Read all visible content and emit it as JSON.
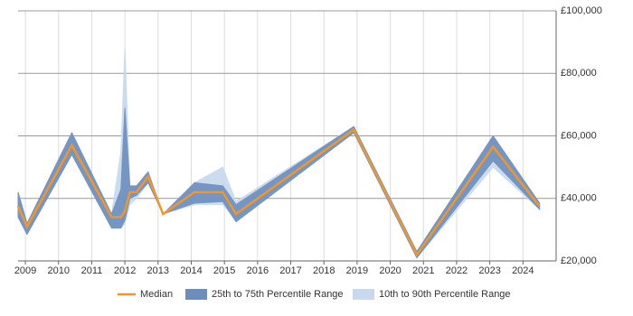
{
  "chart_data": {
    "type": "line",
    "x": [
      2008.78,
      2009.05,
      2010.4,
      2011.6,
      2011.88,
      2012.0,
      2012.15,
      2012.35,
      2012.7,
      2013.15,
      2014.1,
      2014.95,
      2015.35,
      2018.9,
      2020.8,
      2023.1,
      2024.5
    ],
    "series": [
      {
        "name": "Median",
        "color": "#f0962a",
        "values": [
          37500,
          31000,
          57000,
          34000,
          34000,
          36000,
          42000,
          42000,
          47000,
          35000,
          42000,
          42000,
          35000,
          62000,
          22000,
          56500,
          37500
        ]
      }
    ],
    "bands": [
      {
        "name": "25th to 75th Percentile Range",
        "color": "#6c8ebf",
        "lower": [
          34000,
          28500,
          54000,
          30500,
          30500,
          33000,
          40000,
          41000,
          45000,
          35000,
          38500,
          39000,
          32500,
          61000,
          21000,
          52000,
          36500
        ],
        "upper": [
          42000,
          32000,
          61000,
          35000,
          43000,
          69000,
          44000,
          44000,
          48500,
          35000,
          45000,
          44000,
          38000,
          63000,
          23000,
          60000,
          38500
        ]
      },
      {
        "name": "10th to 90th Percentile Range",
        "color": "#c6d9ee",
        "lower": [
          34000,
          28500,
          54000,
          30500,
          30500,
          32000,
          38000,
          40000,
          45000,
          35000,
          38000,
          38000,
          33000,
          61000,
          21000,
          50000,
          36500
        ],
        "upper": [
          42000,
          32000,
          61000,
          35000,
          55000,
          88000,
          44000,
          44000,
          48500,
          35000,
          45000,
          50000,
          39000,
          63000,
          23000,
          60000,
          38500
        ]
      }
    ],
    "xlim": [
      2008.78,
      2025.0
    ],
    "xticks": [
      2009,
      2010,
      2011,
      2012,
      2013,
      2014,
      2015,
      2016,
      2017,
      2018,
      2019,
      2020,
      2021,
      2022,
      2023,
      2024
    ],
    "ylim": [
      20000,
      100000
    ],
    "yticks": [
      {
        "value": 20000,
        "label": "£20,000"
      },
      {
        "value": 40000,
        "label": "£40,000"
      },
      {
        "value": 60000,
        "label": "£60,000"
      },
      {
        "value": 80000,
        "label": "£80,000"
      },
      {
        "value": 100000,
        "label": "£100,000"
      }
    ],
    "grid": true
  }
}
